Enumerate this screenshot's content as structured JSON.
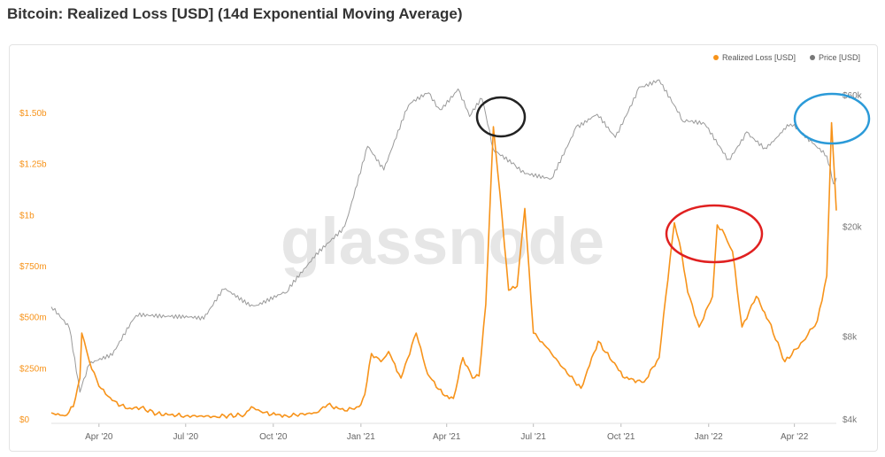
{
  "page": {
    "title": "Bitcoin: Realized Loss [USD] (14d Exponential Moving Average)"
  },
  "watermark": "glassnode",
  "colors": {
    "loss": "#f7931a",
    "price": "#9a9a9a",
    "black_circle": "#222222",
    "red_circle": "#e02020",
    "blue_circle": "#2b9ad8"
  },
  "chart_data": {
    "type": "line",
    "title": "Bitcoin: Realized Loss [USD] (14d Exponential Moving Average)",
    "legend_position": "top-right",
    "x_ticks": [
      "Apr '20",
      "Jul '20",
      "Oct '20",
      "Jan '21",
      "Apr '21",
      "Jul '21",
      "Oct '21",
      "Jan '22",
      "Apr '22"
    ],
    "x_range": [
      "2020-02-11",
      "2022-05-15"
    ],
    "y_left": {
      "ticks": [
        "$0",
        "$250m",
        "$500m",
        "$750m",
        "$1b",
        "$1.25b",
        "$1.50b"
      ],
      "min": 0,
      "max": 1500000000,
      "unit": "USD"
    },
    "y_right": {
      "ticks": [
        "$4k",
        "$8k",
        "$20k",
        "$60k"
      ],
      "tick_values": [
        4000,
        8000,
        20000,
        60000
      ],
      "scale": "log"
    },
    "series": [
      {
        "name": "Realized Loss [USD]",
        "axis": "left",
        "points": [
          [
            "2020-02-11",
            30000000
          ],
          [
            "2020-02-25",
            15000000
          ],
          [
            "2020-03-05",
            60000000
          ],
          [
            "2020-03-12",
            200000000
          ],
          [
            "2020-03-14",
            420000000
          ],
          [
            "2020-03-22",
            280000000
          ],
          [
            "2020-04-01",
            160000000
          ],
          [
            "2020-04-15",
            90000000
          ],
          [
            "2020-05-01",
            50000000
          ],
          [
            "2020-05-15",
            55000000
          ],
          [
            "2020-06-01",
            25000000
          ],
          [
            "2020-07-01",
            15000000
          ],
          [
            "2020-08-01",
            12000000
          ],
          [
            "2020-09-01",
            20000000
          ],
          [
            "2020-09-08",
            60000000
          ],
          [
            "2020-09-20",
            30000000
          ],
          [
            "2020-10-15",
            15000000
          ],
          [
            "2020-11-15",
            30000000
          ],
          [
            "2020-11-27",
            70000000
          ],
          [
            "2020-12-15",
            40000000
          ],
          [
            "2020-12-30",
            60000000
          ],
          [
            "2021-01-05",
            120000000
          ],
          [
            "2021-01-12",
            320000000
          ],
          [
            "2021-01-22",
            280000000
          ],
          [
            "2021-01-30",
            330000000
          ],
          [
            "2021-02-12",
            200000000
          ],
          [
            "2021-02-28",
            420000000
          ],
          [
            "2021-03-12",
            220000000
          ],
          [
            "2021-03-28",
            120000000
          ],
          [
            "2021-04-08",
            100000000
          ],
          [
            "2021-04-18",
            300000000
          ],
          [
            "2021-04-28",
            200000000
          ],
          [
            "2021-05-05",
            210000000
          ],
          [
            "2021-05-12",
            560000000
          ],
          [
            "2021-05-20",
            1430000000
          ],
          [
            "2021-05-27",
            1100000000
          ],
          [
            "2021-06-05",
            630000000
          ],
          [
            "2021-06-14",
            650000000
          ],
          [
            "2021-06-22",
            1030000000
          ],
          [
            "2021-07-01",
            420000000
          ],
          [
            "2021-07-15",
            350000000
          ],
          [
            "2021-08-01",
            250000000
          ],
          [
            "2021-08-20",
            150000000
          ],
          [
            "2021-09-07",
            380000000
          ],
          [
            "2021-09-22",
            280000000
          ],
          [
            "2021-10-05",
            200000000
          ],
          [
            "2021-10-25",
            180000000
          ],
          [
            "2021-11-10",
            300000000
          ],
          [
            "2021-11-17",
            600000000
          ],
          [
            "2021-11-26",
            960000000
          ],
          [
            "2021-12-04",
            800000000
          ],
          [
            "2021-12-10",
            620000000
          ],
          [
            "2021-12-22",
            450000000
          ],
          [
            "2022-01-05",
            600000000
          ],
          [
            "2022-01-10",
            950000000
          ],
          [
            "2022-01-18",
            900000000
          ],
          [
            "2022-01-26",
            820000000
          ],
          [
            "2022-02-05",
            450000000
          ],
          [
            "2022-02-20",
            600000000
          ],
          [
            "2022-03-05",
            480000000
          ],
          [
            "2022-03-22",
            280000000
          ],
          [
            "2022-04-10",
            380000000
          ],
          [
            "2022-04-25",
            480000000
          ],
          [
            "2022-05-05",
            700000000
          ],
          [
            "2022-05-10",
            1450000000
          ],
          [
            "2022-05-15",
            1020000000
          ]
        ]
      },
      {
        "name": "Price [USD]",
        "axis": "right",
        "points": [
          [
            "2020-02-11",
            10200
          ],
          [
            "2020-03-01",
            8500
          ],
          [
            "2020-03-12",
            5000
          ],
          [
            "2020-03-22",
            6300
          ],
          [
            "2020-04-15",
            6800
          ],
          [
            "2020-05-10",
            9500
          ],
          [
            "2020-06-15",
            9400
          ],
          [
            "2020-07-20",
            9200
          ],
          [
            "2020-08-10",
            11800
          ],
          [
            "2020-09-10",
            10300
          ],
          [
            "2020-10-15",
            11500
          ],
          [
            "2020-11-15",
            16000
          ],
          [
            "2020-12-15",
            20000
          ],
          [
            "2021-01-08",
            39000
          ],
          [
            "2021-01-25",
            32000
          ],
          [
            "2021-02-20",
            55000
          ],
          [
            "2021-03-13",
            61000
          ],
          [
            "2021-03-25",
            53000
          ],
          [
            "2021-04-13",
            63000
          ],
          [
            "2021-04-25",
            50000
          ],
          [
            "2021-05-08",
            58000
          ],
          [
            "2021-05-20",
            38000
          ],
          [
            "2021-06-10",
            34000
          ],
          [
            "2021-06-22",
            31000
          ],
          [
            "2021-07-20",
            29800
          ],
          [
            "2021-08-15",
            46000
          ],
          [
            "2021-09-06",
            51000
          ],
          [
            "2021-09-25",
            42000
          ],
          [
            "2021-10-20",
            64000
          ],
          [
            "2021-11-10",
            68000
          ],
          [
            "2021-12-05",
            48000
          ],
          [
            "2021-12-28",
            47000
          ],
          [
            "2022-01-22",
            35000
          ],
          [
            "2022-02-10",
            44000
          ],
          [
            "2022-03-01",
            38500
          ],
          [
            "2022-03-28",
            47000
          ],
          [
            "2022-04-20",
            40000
          ],
          [
            "2022-05-05",
            36000
          ],
          [
            "2022-05-12",
            28500
          ],
          [
            "2022-05-15",
            30000
          ]
        ]
      }
    ],
    "annotations": [
      {
        "shape": "ellipse",
        "color": "black",
        "around": "May 2021 realized loss peak"
      },
      {
        "shape": "ellipse",
        "color": "red",
        "around": "Nov 2021 – Jan 2022 twin peaks"
      },
      {
        "shape": "ellipse",
        "color": "blue",
        "around": "May 2022 realized loss peak"
      }
    ]
  }
}
